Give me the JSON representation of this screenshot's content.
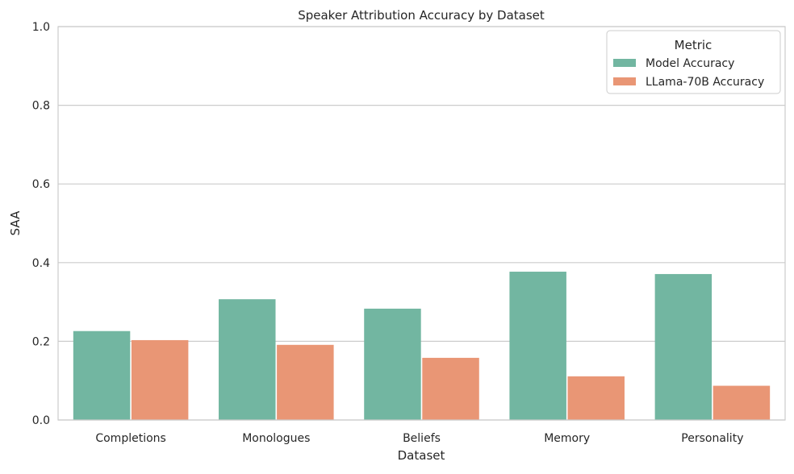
{
  "chart_data": {
    "type": "bar",
    "title": "Speaker Attribution Accuracy by Dataset",
    "xlabel": "Dataset",
    "ylabel": "SAA",
    "ylim": [
      0,
      1.0
    ],
    "yticks": [
      "0.0",
      "0.2",
      "0.4",
      "0.6",
      "0.8",
      "1.0"
    ],
    "grid": true,
    "legend": {
      "title": "Metric",
      "placement": "top-right"
    },
    "categories": [
      "Completions",
      "Monologues",
      "Beliefs",
      "Memory",
      "Personality"
    ],
    "series": [
      {
        "name": "Model Accuracy",
        "color": "#72b6a1",
        "values": [
          0.226,
          0.307,
          0.283,
          0.377,
          0.371
        ]
      },
      {
        "name": "LLama-70B Accuracy",
        "color": "#e99675",
        "values": [
          0.203,
          0.191,
          0.158,
          0.111,
          0.087
        ]
      }
    ]
  }
}
